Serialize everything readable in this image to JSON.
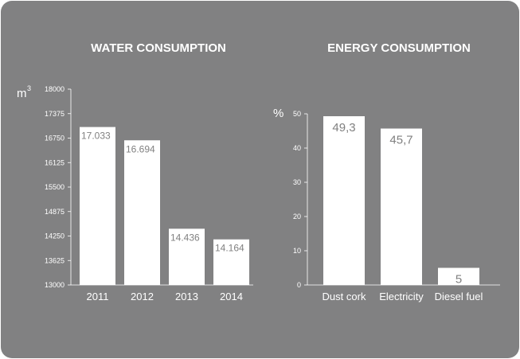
{
  "chart_data": [
    {
      "type": "bar",
      "title": "WATER CONSUMPTION",
      "ylabel": "m",
      "ylabel_sup": "3",
      "categories": [
        "2011",
        "2012",
        "2013",
        "2014"
      ],
      "values": [
        17033,
        16694,
        14436,
        14164
      ],
      "data_labels": [
        "17.033",
        "16.694",
        "14.436",
        "14.164"
      ],
      "yticks": [
        "18000",
        "17375",
        "16750",
        "16125",
        "15500",
        "14875",
        "14250",
        "13625",
        "13000"
      ],
      "ylim": [
        13000,
        18000
      ],
      "grid": false,
      "bar_color": "#ffffff",
      "background": "#818182"
    },
    {
      "type": "bar",
      "title": "ENERGY CONSUMPTION",
      "ylabel": "%",
      "categories": [
        "Dust cork",
        "Electricity",
        "Diesel fuel"
      ],
      "values": [
        49.3,
        45.7,
        5
      ],
      "data_labels": [
        "49,3",
        "45,7",
        "5"
      ],
      "yticks": [
        "50",
        "40",
        "30",
        "20",
        "10",
        "0"
      ],
      "ylim": [
        0,
        50
      ],
      "grid": false,
      "bar_color": "#ffffff",
      "background": "#818182"
    }
  ]
}
